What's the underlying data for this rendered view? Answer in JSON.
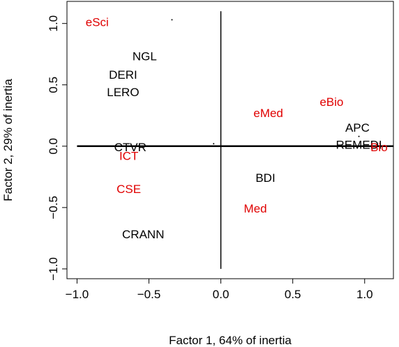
{
  "chart_data": {
    "type": "scatter",
    "xlabel": "Factor 1, 64% of inertia",
    "ylabel": "Factor 2, 29% of inertia",
    "xlim": [
      -1.07,
      1.2
    ],
    "ylim": [
      -1.08,
      1.18
    ],
    "x_ticks": [
      -1.0,
      -0.5,
      0.0,
      0.5,
      1.0
    ],
    "x_tick_labels": [
      "−1.0",
      "−0.5",
      "0.0",
      "0.5",
      "1.0"
    ],
    "y_ticks": [
      -1.0,
      -0.5,
      0.0,
      0.5,
      1.0
    ],
    "y_tick_labels": [
      "−1.0",
      "−0.5",
      "0.0",
      "0.5",
      "1.0"
    ],
    "grid": false,
    "reference_lines": {
      "horizontal_at_y": 0,
      "vertical_at_x": 0
    },
    "colors": {
      "black_group": "#000000",
      "red_group": "#e00000"
    },
    "points": [
      {
        "label": "eSci",
        "x": -0.86,
        "y": 1.01,
        "color": "#e00000"
      },
      {
        "label": "NGL",
        "x": -0.53,
        "y": 0.73,
        "color": "#000000"
      },
      {
        "label": "DERI",
        "x": -0.68,
        "y": 0.58,
        "color": "#000000"
      },
      {
        "label": "LERO",
        "x": -0.68,
        "y": 0.44,
        "color": "#000000"
      },
      {
        "label": "eMed",
        "x": 0.33,
        "y": 0.27,
        "color": "#e00000"
      },
      {
        "label": "eBio",
        "x": 0.77,
        "y": 0.36,
        "color": "#e00000"
      },
      {
        "label": "APC",
        "x": 0.95,
        "y": 0.15,
        "color": "#000000"
      },
      {
        "label": "REMEDI",
        "x": 0.96,
        "y": 0.01,
        "color": "#000000"
      },
      {
        "label": "Bio",
        "x": 1.1,
        "y": -0.01,
        "color": "#e00000"
      },
      {
        "label": "CTVR",
        "x": -0.63,
        "y": -0.01,
        "color": "#000000"
      },
      {
        "label": "ICT",
        "x": -0.64,
        "y": -0.08,
        "color": "#e00000"
      },
      {
        "label": "BDI",
        "x": 0.31,
        "y": -0.26,
        "color": "#000000"
      },
      {
        "label": "CSE",
        "x": -0.64,
        "y": -0.35,
        "color": "#e00000"
      },
      {
        "label": "Med",
        "x": 0.24,
        "y": -0.51,
        "color": "#e00000"
      },
      {
        "label": "CRANN",
        "x": -0.54,
        "y": -0.72,
        "color": "#000000"
      }
    ],
    "markers": [
      {
        "x": -0.34,
        "y": 1.03
      },
      {
        "x": -0.05,
        "y": 0.02
      },
      {
        "x": 0.96,
        "y": 0.08
      }
    ]
  }
}
